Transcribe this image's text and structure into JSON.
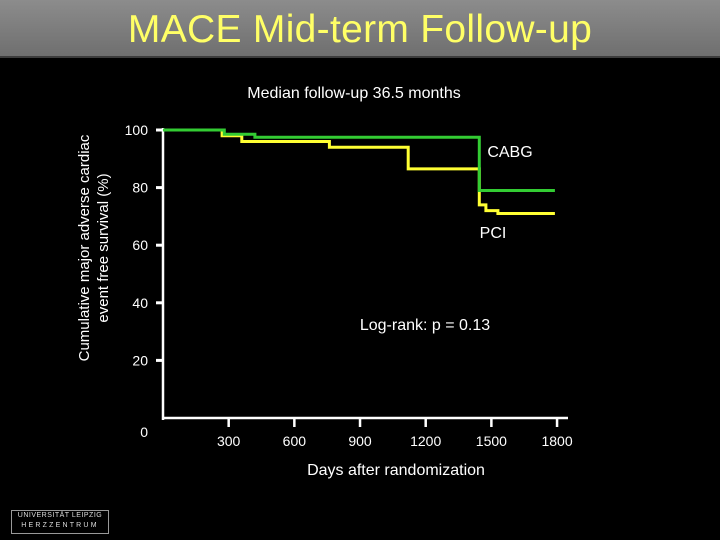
{
  "slide": {
    "title": "MACE Mid-term Follow-up",
    "logo": {
      "line1": "UNIVERSITÄT LEIPZIG",
      "line2": "HERZZENTRUM"
    }
  },
  "chart_data": {
    "type": "line",
    "subtitle": "Median follow-up 36.5 months",
    "ylabel_line1": "Cumulative major adverse cardiac",
    "ylabel_line2": "event free survival (%)",
    "xlabel": "Days after randomization",
    "ylim": [
      0,
      100
    ],
    "xlim": [
      0,
      1850
    ],
    "y_ticks": [
      {
        "value": 0,
        "label": "0"
      },
      {
        "value": 20,
        "label": "20"
      },
      {
        "value": 40,
        "label": "40"
      },
      {
        "value": 60,
        "label": "60"
      },
      {
        "value": 80,
        "label": "80"
      },
      {
        "value": 100,
        "label": "100"
      }
    ],
    "x_ticks": [
      {
        "value": 300,
        "label": "300"
      },
      {
        "value": 600,
        "label": "600"
      },
      {
        "value": 900,
        "label": "900"
      },
      {
        "value": 1200,
        "label": "1200"
      },
      {
        "value": 1500,
        "label": "1500"
      },
      {
        "value": 1800,
        "label": "1800"
      }
    ],
    "annotation": "Log-rank: p = 0.13",
    "colors": {
      "axis": "#ffffff",
      "text": "#ffffff",
      "title": "#ffff66"
    },
    "series": [
      {
        "name": "CABG",
        "color": "#33cc33",
        "points": [
          [
            0,
            100
          ],
          [
            280,
            100
          ],
          [
            280,
            98.5
          ],
          [
            420,
            98.5
          ],
          [
            420,
            97.5
          ],
          [
            1445,
            97.5
          ],
          [
            1445,
            79
          ],
          [
            1790,
            79
          ]
        ]
      },
      {
        "name": "PCI",
        "color": "#ffff33",
        "points": [
          [
            0,
            100
          ],
          [
            270,
            100
          ],
          [
            270,
            98
          ],
          [
            360,
            98
          ],
          [
            360,
            96
          ],
          [
            760,
            96
          ],
          [
            760,
            94
          ],
          [
            1120,
            94
          ],
          [
            1120,
            86.5
          ],
          [
            1445,
            86.5
          ],
          [
            1445,
            74
          ],
          [
            1475,
            74
          ],
          [
            1475,
            72
          ],
          [
            1530,
            72
          ],
          [
            1530,
            71
          ],
          [
            1790,
            71
          ]
        ]
      }
    ]
  }
}
